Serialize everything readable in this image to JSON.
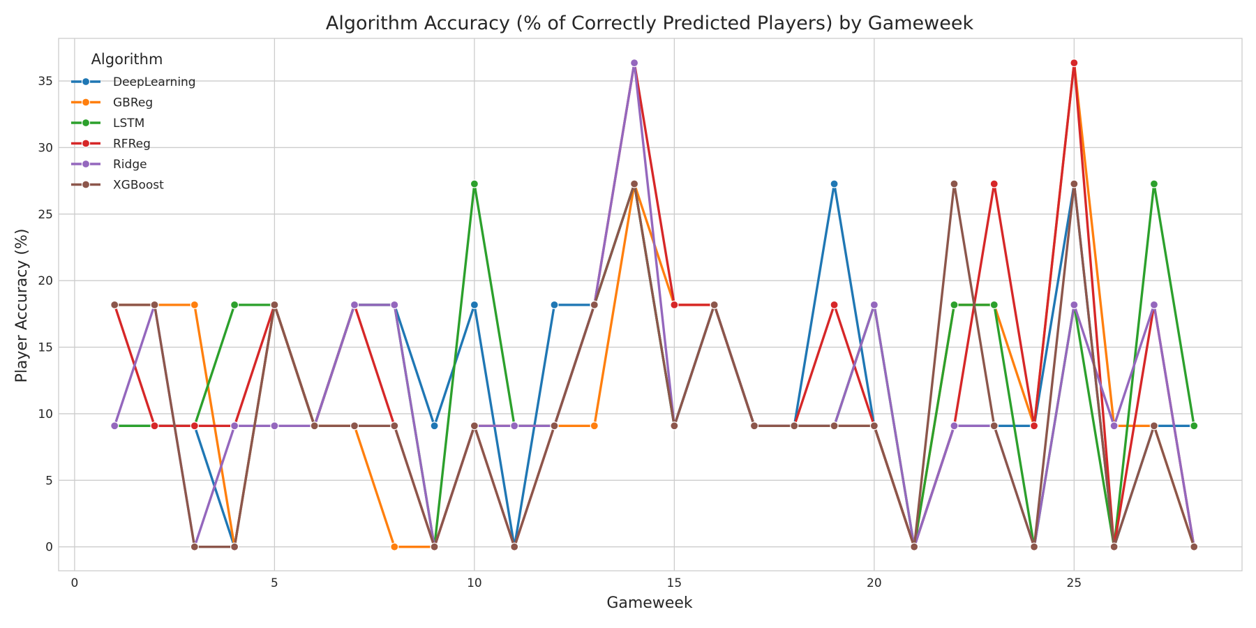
{
  "chart_data": {
    "type": "line",
    "title": "Algorithm Accuracy (% of Correctly Predicted Players) by Gameweek",
    "xlabel": "Gameweek",
    "ylabel": "Player Accuracy (%)",
    "xlim": [
      -0.4,
      29.2
    ],
    "ylim": [
      -1.8,
      38.2
    ],
    "xticks": [
      0,
      5,
      10,
      15,
      20,
      25
    ],
    "yticks": [
      0,
      5,
      10,
      15,
      20,
      25,
      30,
      35
    ],
    "grid": true,
    "legend": {
      "title": "Algorithm",
      "position": "top-left"
    },
    "x": [
      1,
      2,
      3,
      4,
      5,
      6,
      7,
      8,
      9,
      10,
      11,
      12,
      13,
      14,
      15,
      16,
      17,
      18,
      19,
      20,
      21,
      22,
      23,
      24,
      25,
      26,
      27,
      28
    ],
    "series": [
      {
        "name": "DeepLearning",
        "color": "#1f77b4",
        "values": [
          9.09,
          9.09,
          9.09,
          0,
          18.18,
          9.09,
          18.18,
          18.18,
          9.09,
          18.18,
          0,
          18.18,
          18.18,
          27.27,
          9.09,
          18.18,
          9.09,
          9.09,
          27.27,
          9.09,
          0,
          9.09,
          9.09,
          9.09,
          27.27,
          0,
          9.09,
          9.09
        ]
      },
      {
        "name": "GBReg",
        "color": "#ff7f0e",
        "values": [
          18.18,
          18.18,
          18.18,
          0,
          18.18,
          9.09,
          9.09,
          0,
          0,
          9.09,
          9.09,
          9.09,
          9.09,
          27.27,
          18.18,
          18.18,
          9.09,
          9.09,
          9.09,
          9.09,
          0,
          18.18,
          18.18,
          9.09,
          36.36,
          9.09,
          9.09,
          0
        ]
      },
      {
        "name": "LSTM",
        "color": "#2ca02c",
        "values": [
          9.09,
          9.09,
          9.09,
          18.18,
          18.18,
          9.09,
          18.18,
          18.18,
          0,
          27.27,
          9.09,
          9.09,
          18.18,
          27.27,
          9.09,
          18.18,
          9.09,
          9.09,
          9.09,
          18.18,
          0,
          18.18,
          18.18,
          0,
          18.18,
          0,
          27.27,
          9.09
        ]
      },
      {
        "name": "RFReg",
        "color": "#d62728",
        "values": [
          18.18,
          9.09,
          9.09,
          9.09,
          18.18,
          9.09,
          18.18,
          9.09,
          0,
          9.09,
          0,
          9.09,
          18.18,
          36.36,
          18.18,
          18.18,
          9.09,
          9.09,
          18.18,
          9.09,
          0,
          9.09,
          27.27,
          9.09,
          36.36,
          0,
          18.18,
          0
        ]
      },
      {
        "name": "Ridge",
        "color": "#9467bd",
        "values": [
          9.09,
          18.18,
          0,
          9.09,
          9.09,
          9.09,
          18.18,
          18.18,
          0,
          9.09,
          9.09,
          9.09,
          18.18,
          36.36,
          9.09,
          18.18,
          9.09,
          9.09,
          9.09,
          18.18,
          0,
          9.09,
          9.09,
          0,
          18.18,
          9.09,
          18.18,
          0
        ]
      },
      {
        "name": "XGBoost",
        "color": "#8c564b",
        "values": [
          18.18,
          18.18,
          0,
          0,
          18.18,
          9.09,
          9.09,
          9.09,
          0,
          9.09,
          0,
          9.09,
          18.18,
          27.27,
          9.09,
          18.18,
          9.09,
          9.09,
          9.09,
          9.09,
          0,
          27.27,
          9.09,
          0,
          27.27,
          0,
          9.09,
          0
        ]
      }
    ]
  }
}
